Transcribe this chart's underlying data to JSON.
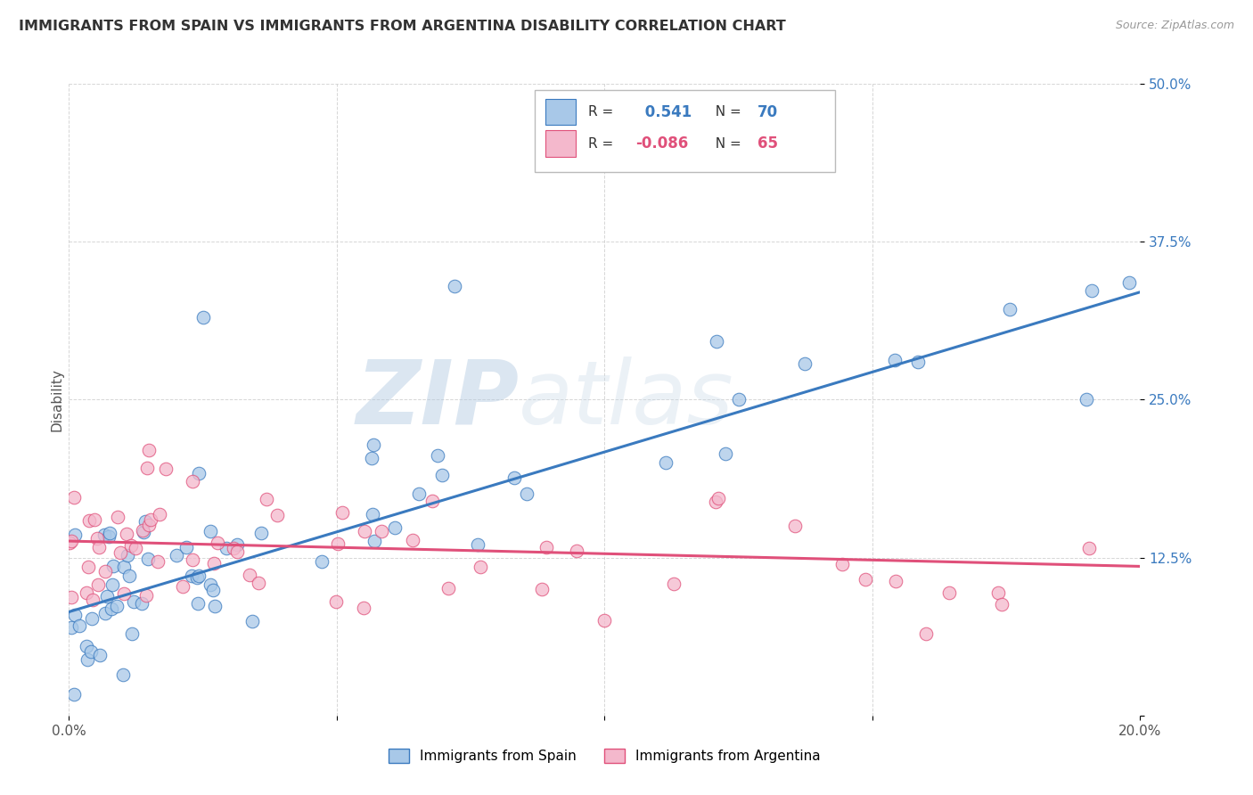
{
  "title": "IMMIGRANTS FROM SPAIN VS IMMIGRANTS FROM ARGENTINA DISABILITY CORRELATION CHART",
  "source": "Source: ZipAtlas.com",
  "ylabel_label": "Disability",
  "x_min": 0.0,
  "x_max": 0.2,
  "y_min": 0.0,
  "y_max": 0.5,
  "x_ticks": [
    0.0,
    0.05,
    0.1,
    0.15,
    0.2
  ],
  "y_ticks": [
    0.0,
    0.125,
    0.25,
    0.375,
    0.5
  ],
  "y_tick_labels": [
    "",
    "12.5%",
    "25.0%",
    "37.5%",
    "50.0%"
  ],
  "R_spain": 0.541,
  "N_spain": 70,
  "R_argentina": -0.086,
  "N_argentina": 65,
  "color_spain": "#a8c8e8",
  "color_argentina": "#f4b8cc",
  "line_color_spain": "#3a7abf",
  "line_color_argentina": "#e0507a",
  "watermark_zip": "ZIP",
  "watermark_atlas": "atlas",
  "spain_line_x0": 0.0,
  "spain_line_y0": 0.082,
  "spain_line_x1": 0.2,
  "spain_line_y1": 0.335,
  "arg_line_x0": 0.0,
  "arg_line_y0": 0.138,
  "arg_line_x1": 0.2,
  "arg_line_y1": 0.118
}
